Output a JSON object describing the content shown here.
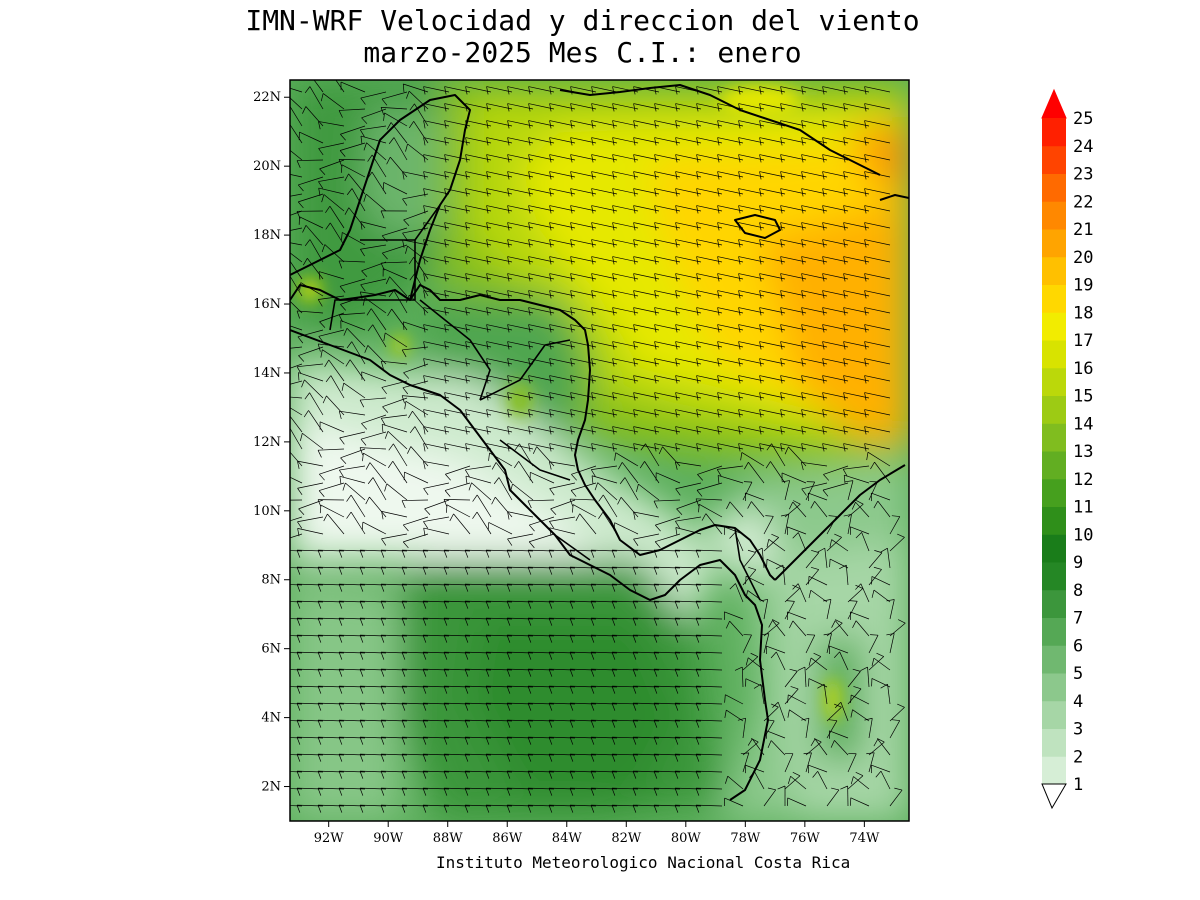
{
  "header": {
    "title_line1": "IMN-WRF Velocidad y direccion del viento",
    "title_line2": "marzo-2025 Mes C.I.: enero"
  },
  "map": {
    "lat_ticks": [
      "22N",
      "20N",
      "18N",
      "16N",
      "14N",
      "12N",
      "10N",
      "8N",
      "6N",
      "4N",
      "2N"
    ],
    "lon_ticks": [
      "92W",
      "90W",
      "88W",
      "86W",
      "84W",
      "82W",
      "80W",
      "78W",
      "76W",
      "74W"
    ],
    "lat_range_deg": [
      1,
      22.5
    ],
    "lon_range_deg": [
      -93.3,
      -72.5
    ],
    "projection": "lat-lon",
    "content": "Shaded wind speed (m/s) with wind barbs over Central America, the Caribbean Sea and eastern Pacific; country borders outlined in black"
  },
  "legend": {
    "levels": [
      "1",
      "2",
      "3",
      "4",
      "5",
      "6",
      "7",
      "8",
      "9",
      "10",
      "11",
      "12",
      "13",
      "14",
      "15",
      "16",
      "17",
      "18",
      "19",
      "20",
      "21",
      "22",
      "23",
      "24",
      "25"
    ],
    "colors": [
      "#ffffff",
      "#d6eed6",
      "#bfe3bf",
      "#a6d6a6",
      "#8cc88c",
      "#70b870",
      "#55a855",
      "#3c963c",
      "#258725",
      "#1a7d1a",
      "#2f8f1a",
      "#46a01e",
      "#62ae22",
      "#80bd1f",
      "#9dcb14",
      "#bbd80a",
      "#d8e300",
      "#f2ec00",
      "#ffd800",
      "#ffc000",
      "#ffa400",
      "#ff8800",
      "#ff6a00",
      "#ff4400",
      "#ff2000"
    ],
    "top_arrow_color": "#ff0000"
  },
  "footer": {
    "credit": "Instituto Meteorologico Nacional Costa Rica"
  }
}
